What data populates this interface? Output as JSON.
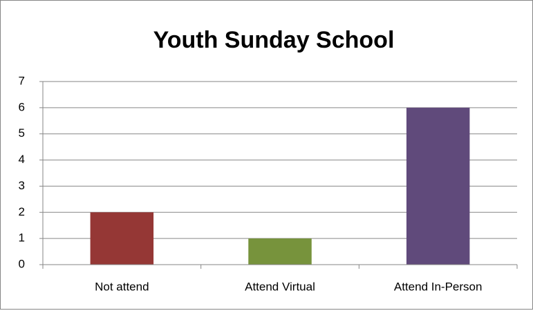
{
  "chart_data": {
    "type": "bar",
    "title": "Youth Sunday School",
    "categories": [
      "Not attend",
      "Attend Virtual",
      "Attend In-Person"
    ],
    "values": [
      2,
      1,
      6
    ],
    "colors": [
      "#953735",
      "#77933c",
      "#604a7b"
    ],
    "ylim": [
      0,
      7
    ],
    "yticks": [
      0,
      1,
      2,
      3,
      4,
      5,
      6,
      7
    ],
    "grid": true
  }
}
